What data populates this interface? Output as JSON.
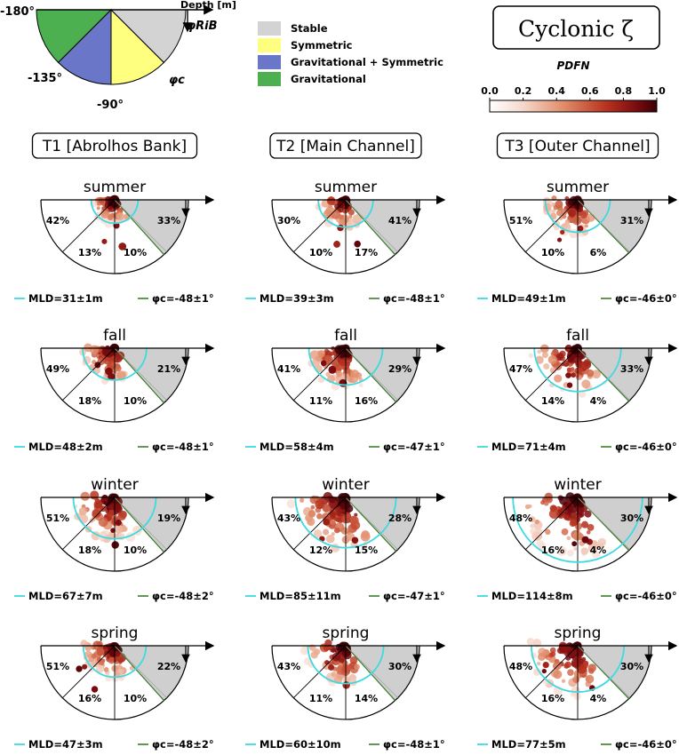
{
  "chart_data": {
    "type": "polar-pdf-panels",
    "title": "Cyclonic ζ",
    "legend_key": {
      "depth_label": "Depth [m]",
      "phi_rib_label": "φRiB",
      "phi_c_label": "φc",
      "angle_labels": [
        "-180°",
        "-135°",
        "-90°"
      ],
      "categories": [
        {
          "label": "Stable",
          "color": "#d3d3d3"
        },
        {
          "label": "Symmetric",
          "color": "#ffff7f"
        },
        {
          "label": "Gravitational + Symmetric",
          "color": "#6a77c9"
        },
        {
          "label": "Gravitational",
          "color": "#4caf50"
        }
      ]
    },
    "colorbar": {
      "label": "PDFN",
      "range": [
        0.0,
        1.0
      ],
      "ticks": [
        "0.0",
        "0.2",
        "0.4",
        "0.6",
        "0.8",
        "1.0"
      ],
      "colormap": "white-to-dark-red"
    },
    "columns": [
      "T1 [Abrolhos Bank]",
      "T2 [Main Channel]",
      "T3 [Outer Channel]"
    ],
    "seasons": [
      "summer",
      "fall",
      "winter",
      "spring"
    ],
    "panels": [
      [
        {
          "season": "summer",
          "gravitational": "42%",
          "grav_sym": "13%",
          "symmetric": "10%",
          "stable": "33%",
          "mld": "MLD=31±1m",
          "phic": "φc=-48±1°",
          "mld_value": 31,
          "phic_value": -48
        },
        {
          "season": "fall",
          "gravitational": "49%",
          "grav_sym": "18%",
          "symmetric": "10%",
          "stable": "21%",
          "mld": "MLD=48±2m",
          "phic": "φc=-48±1°",
          "mld_value": 48,
          "phic_value": -48
        },
        {
          "season": "winter",
          "gravitational": "51%",
          "grav_sym": "18%",
          "symmetric": "10%",
          "stable": "19%",
          "mld": "MLD=67±7m",
          "phic": "φc=-48±2°",
          "mld_value": 67,
          "phic_value": -48
        },
        {
          "season": "spring",
          "gravitational": "51%",
          "grav_sym": "16%",
          "symmetric": "10%",
          "stable": "22%",
          "mld": "MLD=47±3m",
          "phic": "φc=-48±2°",
          "mld_value": 47,
          "phic_value": -48
        }
      ],
      [
        {
          "season": "summer",
          "gravitational": "30%",
          "grav_sym": "10%",
          "symmetric": "17%",
          "stable": "41%",
          "mld": "MLD=39±3m",
          "phic": "φc=-48±1°",
          "mld_value": 39,
          "phic_value": -48
        },
        {
          "season": "fall",
          "gravitational": "41%",
          "grav_sym": "11%",
          "symmetric": "16%",
          "stable": "29%",
          "mld": "MLD=58±4m",
          "phic": "φc=-47±1°",
          "mld_value": 58,
          "phic_value": -47
        },
        {
          "season": "winter",
          "gravitational": "43%",
          "grav_sym": "12%",
          "symmetric": "15%",
          "stable": "28%",
          "mld": "MLD=85±11m",
          "phic": "φc=-47±1°",
          "mld_value": 85,
          "phic_value": -47
        },
        {
          "season": "spring",
          "gravitational": "43%",
          "grav_sym": "11%",
          "symmetric": "14%",
          "stable": "30%",
          "mld": "MLD=60±10m",
          "phic": "φc=-48±1°",
          "mld_value": 60,
          "phic_value": -48
        }
      ],
      [
        {
          "season": "summer",
          "gravitational": "51%",
          "grav_sym": "10%",
          "symmetric": "6%",
          "stable": "31%",
          "mld": "MLD=49±1m",
          "phic": "φc=-46±0°",
          "mld_value": 49,
          "phic_value": -46
        },
        {
          "season": "fall",
          "gravitational": "47%",
          "grav_sym": "14%",
          "symmetric": "4%",
          "stable": "33%",
          "mld": "MLD=71±4m",
          "phic": "φc=-46±0°",
          "mld_value": 71,
          "phic_value": -46
        },
        {
          "season": "winter",
          "gravitational": "48%",
          "grav_sym": "16%",
          "symmetric": "4%",
          "stable": "30%",
          "mld": "MLD=114±8m",
          "phic": "φc=-46±0°",
          "mld_value": 114,
          "phic_value": -46
        },
        {
          "season": "spring",
          "gravitational": "48%",
          "grav_sym": "16%",
          "symmetric": "4%",
          "stable": "30%",
          "mld": "MLD=77±5m",
          "phic": "φc=-46±0°",
          "mld_value": 77,
          "phic_value": -46
        }
      ]
    ],
    "colors": {
      "mld_line": "#3fd9e0",
      "phic_line": "#3a7d2c",
      "stable_fill": "#cfcfcf"
    }
  }
}
